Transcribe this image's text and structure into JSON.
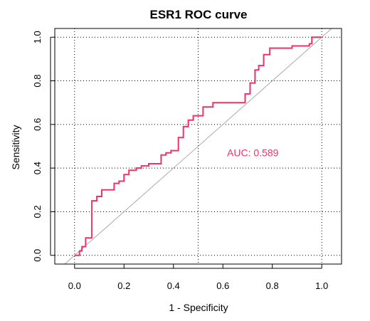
{
  "chart_data": {
    "type": "line",
    "title": "ESR1 ROC curve",
    "xlabel": "1 - Specificity",
    "ylabel": "Sensitivity",
    "xlim": [
      -0.08,
      1.08
    ],
    "ylim": [
      -0.04,
      1.04
    ],
    "x_ticks": [
      0.0,
      0.2,
      0.4,
      0.6,
      0.8,
      1.0
    ],
    "y_ticks": [
      0.0,
      0.2,
      0.4,
      0.6,
      0.8,
      1.0
    ],
    "x_tick_labels": [
      "0.0",
      "0.2",
      "0.4",
      "0.6",
      "0.8",
      "1.0"
    ],
    "y_tick_labels": [
      "0.0",
      "0.2",
      "0.4",
      "0.6",
      "0.8",
      "1.0"
    ],
    "grid": "dotted at x=0, 0.5, 1 and y=0, 0.2, 0.4, 0.6, 0.8, 1",
    "grid_x": [
      0.0,
      0.5,
      1.0
    ],
    "grid_y": [
      0.0,
      0.2,
      0.4,
      0.6,
      0.8,
      1.0
    ],
    "diagonal": {
      "from": [
        -0.04,
        -0.04
      ],
      "to": [
        1.04,
        1.04
      ],
      "color": "#aaaaaa"
    },
    "annotation": {
      "text": "AUC: 0.589",
      "x": 0.6,
      "y": 0.47
    },
    "series": [
      {
        "color": "#ee3366",
        "x": [
          0.0,
          0.02,
          0.02,
          0.03,
          0.03,
          0.045,
          0.045,
          0.07,
          0.07,
          0.09,
          0.09,
          0.11,
          0.11,
          0.16,
          0.16,
          0.18,
          0.18,
          0.2,
          0.2,
          0.22,
          0.22,
          0.25,
          0.25,
          0.27,
          0.27,
          0.3,
          0.3,
          0.35,
          0.35,
          0.37,
          0.37,
          0.39,
          0.39,
          0.42,
          0.42,
          0.44,
          0.44,
          0.46,
          0.46,
          0.48,
          0.48,
          0.52,
          0.52,
          0.56,
          0.56,
          0.69,
          0.69,
          0.71,
          0.71,
          0.73,
          0.73,
          0.745,
          0.745,
          0.765,
          0.765,
          0.79,
          0.79,
          0.88,
          0.88,
          0.95,
          0.95,
          0.96,
          0.96,
          1.0
        ],
        "y": [
          0.0,
          0.0,
          0.02,
          0.02,
          0.04,
          0.04,
          0.08,
          0.08,
          0.25,
          0.25,
          0.27,
          0.27,
          0.3,
          0.3,
          0.33,
          0.33,
          0.34,
          0.34,
          0.37,
          0.37,
          0.39,
          0.39,
          0.4,
          0.4,
          0.41,
          0.41,
          0.42,
          0.42,
          0.46,
          0.46,
          0.47,
          0.47,
          0.48,
          0.48,
          0.54,
          0.54,
          0.59,
          0.59,
          0.62,
          0.62,
          0.64,
          0.64,
          0.68,
          0.68,
          0.7,
          0.7,
          0.74,
          0.74,
          0.79,
          0.79,
          0.85,
          0.85,
          0.87,
          0.87,
          0.92,
          0.92,
          0.95,
          0.95,
          0.96,
          0.96,
          0.97,
          0.97,
          1.0,
          1.0
        ]
      }
    ]
  }
}
